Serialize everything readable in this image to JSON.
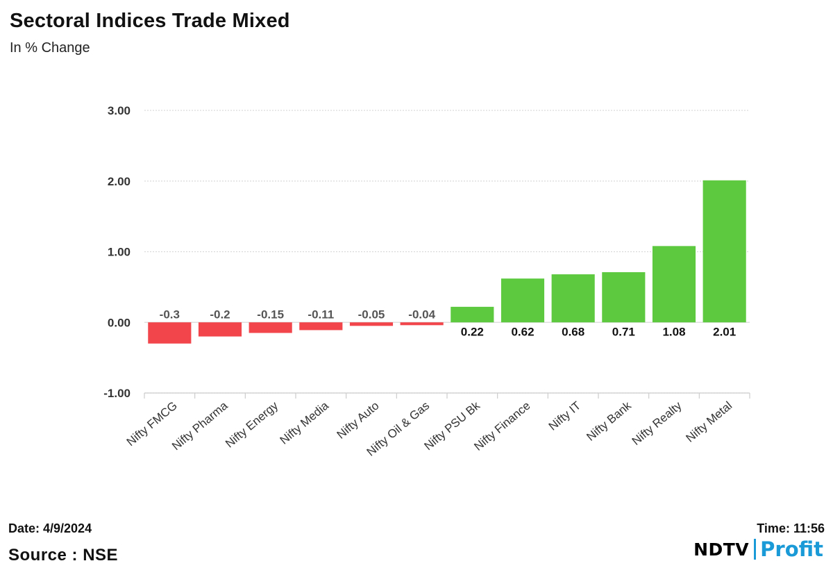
{
  "header": {
    "title": "Sectoral Indices Trade Mixed",
    "subtitle": "In % Change"
  },
  "footer": {
    "date": "Date: 4/9/2024",
    "source": "Source : NSE",
    "time": "Time: 11:56"
  },
  "brand": {
    "ndtv": "NDTV",
    "profit_pre": "Prof",
    "profit_i": "i",
    "profit_post": "t"
  },
  "colors": {
    "positive": "#5cc93f",
    "negative": "#f1454b",
    "grid": "#d9d9d9",
    "brand_blue": "#1a9ad6",
    "brand_pink": "#e9287c"
  },
  "chart_data": {
    "type": "bar",
    "title": "",
    "xlabel": "",
    "ylabel": "",
    "ylim": [
      -1,
      3
    ],
    "yticks": [
      -1,
      0,
      1,
      2,
      3
    ],
    "ytick_labels": [
      "-1.00",
      "0.00",
      "1.00",
      "2.00",
      "3.00"
    ],
    "grid": true,
    "categories": [
      "Nifty FMCG",
      "Nifty Pharma",
      "Nifty Energy",
      "Nifty Media",
      "Nifty Auto",
      "Nifty Oil & Gas",
      "Nifty PSU Bk",
      "Nifty Finance",
      "Nifty IT",
      "Nifty Bank",
      "Nifty Realty",
      "Nifty Metal"
    ],
    "values": [
      -0.3,
      -0.2,
      -0.15,
      -0.11,
      -0.05,
      -0.04,
      0.22,
      0.62,
      0.68,
      0.71,
      1.08,
      2.01
    ],
    "value_labels": [
      "-0.3",
      "-0.2",
      "-0.15",
      "-0.11",
      "-0.05",
      "-0.04",
      "0.22",
      "0.62",
      "0.68",
      "0.71",
      "1.08",
      "2.01"
    ]
  }
}
